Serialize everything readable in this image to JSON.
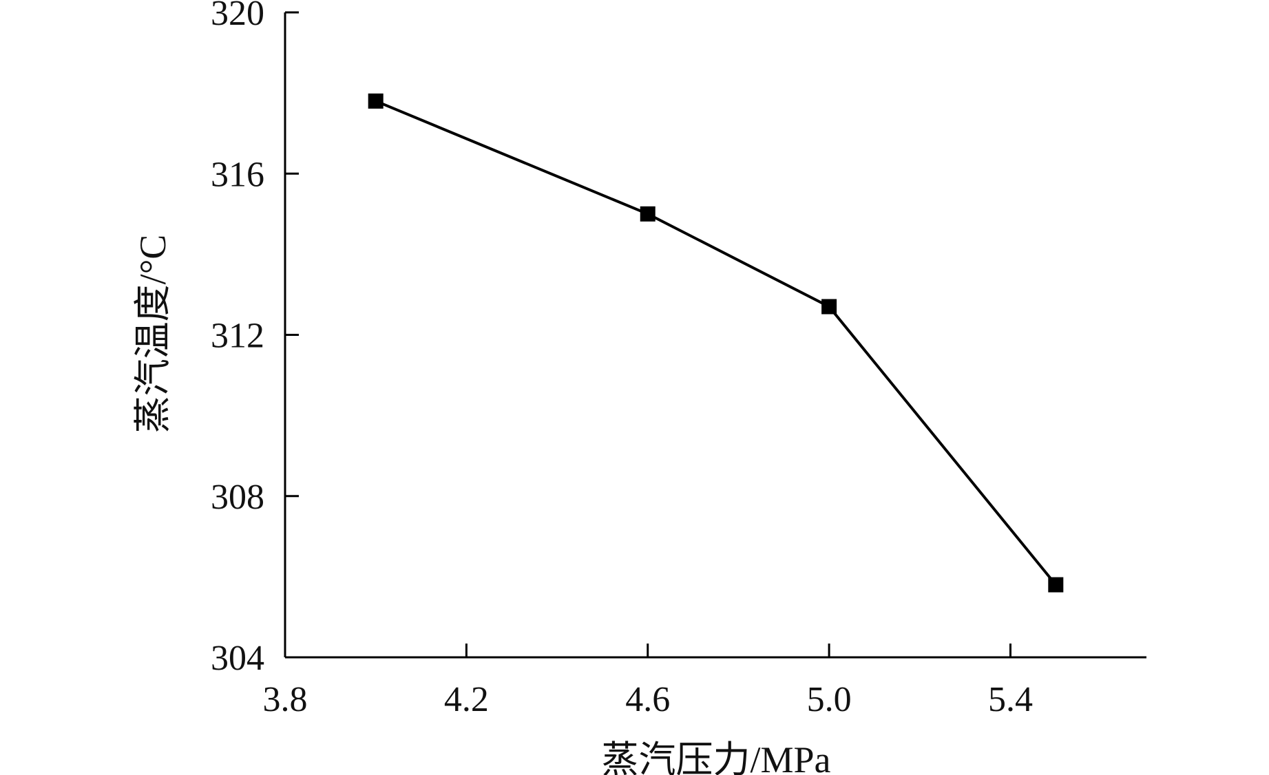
{
  "chart_data": {
    "type": "line",
    "title": "",
    "xlabel": "蒸汽压力/MPa",
    "ylabel": "蒸汽温度/°C",
    "xlim": [
      3.8,
      5.7
    ],
    "ylim": [
      304,
      320
    ],
    "x_ticks": [
      "3.8",
      "4.2",
      "4.6",
      "5.0",
      "5.4"
    ],
    "x_tick_values": [
      3.8,
      4.2,
      4.6,
      5.0,
      5.4
    ],
    "y_ticks": [
      "304",
      "308",
      "312",
      "316",
      "320"
    ],
    "y_tick_values": [
      304,
      308,
      312,
      316,
      320
    ],
    "grid": false,
    "legend": "none",
    "series": [
      {
        "marker": "square",
        "color": "#000000",
        "x": [
          4.0,
          4.6,
          5.0,
          5.5
        ],
        "y": [
          317.8,
          315.0,
          312.7,
          305.8
        ]
      }
    ]
  }
}
